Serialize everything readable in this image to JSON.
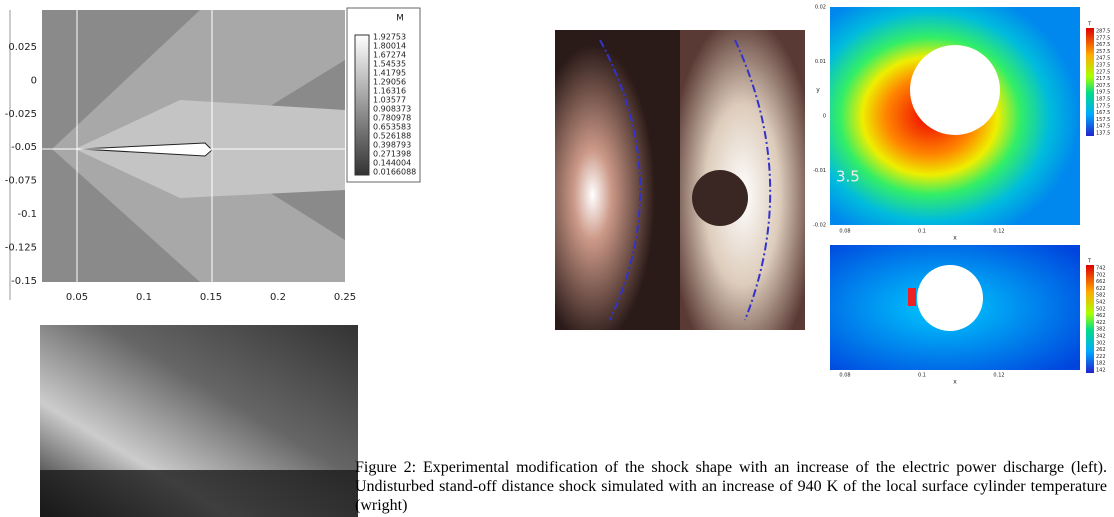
{
  "mach_plot": {
    "yticks": [
      "0.025",
      "0",
      "-0.025",
      "-0.05",
      "-0.075",
      "-0.1",
      "-0.125",
      "-0.15"
    ],
    "xticks": [
      "0.05",
      "0.1",
      "0.15",
      "0.2",
      "0.25"
    ],
    "legend_title": "M",
    "legend_values": [
      "1.92753",
      "1.80014",
      "1.67274",
      "1.54535",
      "1.41795",
      "1.29056",
      "1.16316",
      "1.03577",
      "0.908373",
      "0.780978",
      "0.653583",
      "0.526188",
      "0.398793",
      "0.271398",
      "0.144004",
      "0.0166088"
    ]
  },
  "temp_plot_top": {
    "yticks": [
      "0.02",
      "0.01",
      "0",
      "-0.01",
      "-0.02"
    ],
    "xticks": [
      "0.08",
      "0.1",
      "0.12"
    ],
    "xlabel": "x",
    "ylabel": "y",
    "annotation": "3.5",
    "legend_title": "T",
    "legend_values": [
      "287.5",
      "277.5",
      "267.5",
      "257.5",
      "247.5",
      "237.5",
      "227.5",
      "217.5",
      "207.5",
      "197.5",
      "187.5",
      "177.5",
      "167.5",
      "157.5",
      "147.5",
      "137.5"
    ]
  },
  "temp_plot_bottom": {
    "xticks": [
      "0.08",
      "0.1",
      "0.12"
    ],
    "xlabel": "x",
    "legend_title": "T",
    "legend_values": [
      "742",
      "702",
      "662",
      "622",
      "582",
      "542",
      "502",
      "462",
      "422",
      "382",
      "342",
      "302",
      "262",
      "222",
      "182",
      "142"
    ]
  },
  "caption": "Figure 2: Experimental modification of the shock shape with an increase of the electric power discharge (left). Undisturbed stand-off distance shock simulated with an increase of 940 K of the local surface cylinder temperature (wright)"
}
